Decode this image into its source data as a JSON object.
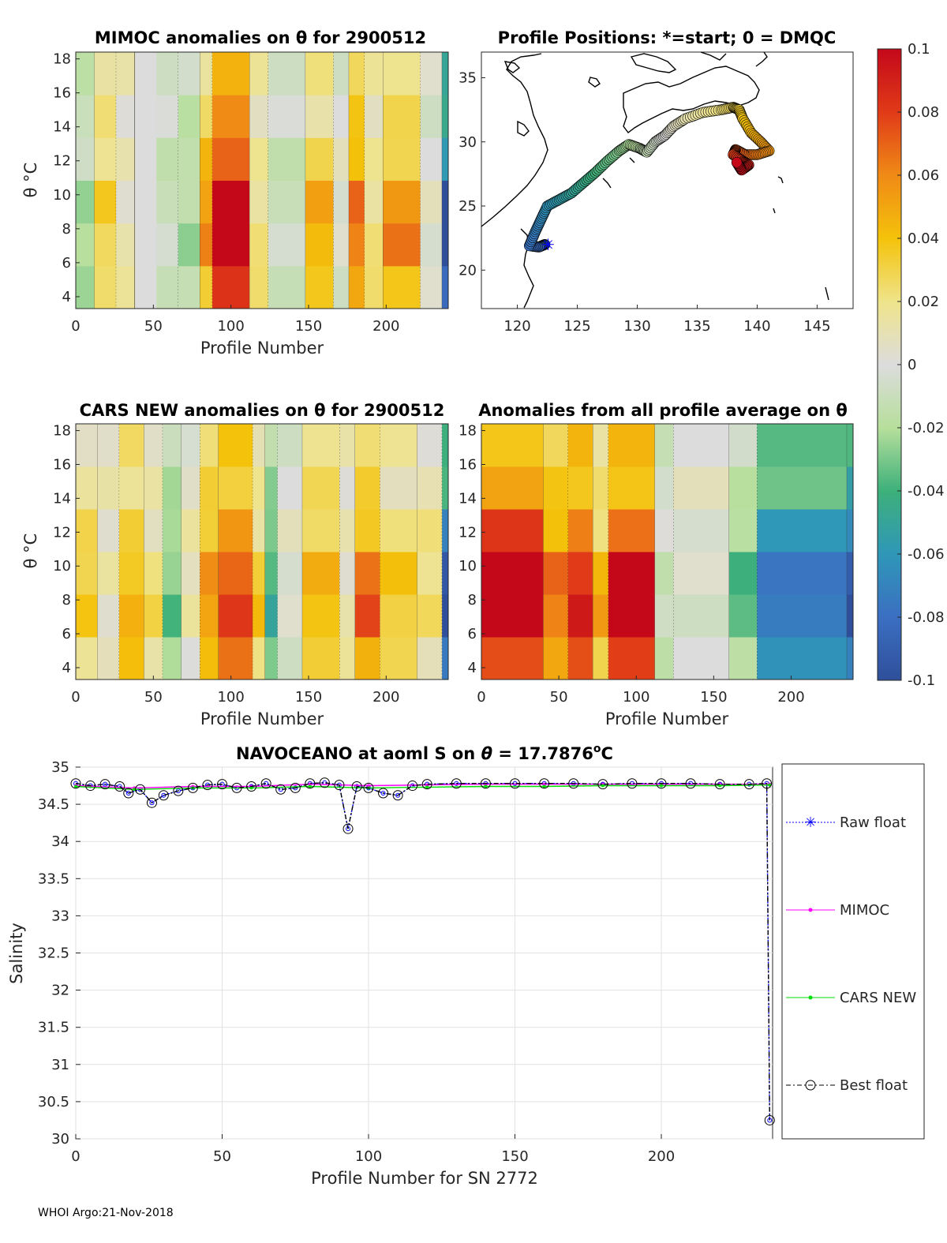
{
  "footer": "WHOI Argo:21-Nov-2018",
  "colors": {
    "raw": "#0000ff",
    "mimoc": "#ff00ff",
    "cars": "#00dd00",
    "best": "#000000"
  },
  "colorbar": {
    "ticks": [
      "0.1",
      "0.08",
      "0.06",
      "0.04",
      "0.02",
      "0",
      "-0.02",
      "-0.04",
      "-0.06",
      "-0.08",
      "-0.1"
    ],
    "range": [
      -0.1,
      0.1
    ]
  },
  "panels": {
    "mimoc": {
      "title": "MIMOC anomalies on θ  for 2900512",
      "xlabel": "Profile Number",
      "ylabel": "θ °C"
    },
    "positions": {
      "title": "Profile Positions: *=start; 0 = DMQC"
    },
    "cars": {
      "title": "CARS NEW anomalies on θ for 2900512",
      "xlabel": "Profile Number",
      "ylabel": "θ °C"
    },
    "avg": {
      "title": "Anomalies from all profile average on θ",
      "xlabel": "Profile Number"
    }
  },
  "chart_data": [
    {
      "type": "heatmap",
      "title": "MIMOC anomalies on θ  for 2900512",
      "xlabel": "Profile Number",
      "ylabel": "θ °C",
      "xlim": [
        0,
        240
      ],
      "ylim": [
        3.3,
        18.4
      ],
      "xticks": [
        "0",
        "50",
        "100",
        "150",
        "200"
      ],
      "yticks": [
        "4",
        "6",
        "8",
        "10",
        "12",
        "14",
        "16",
        "18"
      ],
      "columns": [
        {
          "x0": 0,
          "x1": 12,
          "anom": -0.02
        },
        {
          "x0": 12,
          "x1": 26,
          "anom": 0.03
        },
        {
          "x0": 26,
          "x1": 38,
          "anom": 0.01
        },
        {
          "x0": 52,
          "x1": 66,
          "anom": -0.01
        },
        {
          "x0": 66,
          "x1": 80,
          "anom": -0.02
        },
        {
          "x0": 80,
          "x1": 88,
          "anom": 0.05
        },
        {
          "x0": 88,
          "x1": 112,
          "anom": 0.1
        },
        {
          "x0": 112,
          "x1": 124,
          "anom": 0.02
        },
        {
          "x0": 124,
          "x1": 148,
          "anom": -0.01
        },
        {
          "x0": 148,
          "x1": 166,
          "anom": 0.04
        },
        {
          "x0": 166,
          "x1": 176,
          "anom": 0.0
        },
        {
          "x0": 176,
          "x1": 186,
          "anom": 0.06
        },
        {
          "x0": 186,
          "x1": 198,
          "anom": 0.02
        },
        {
          "x0": 198,
          "x1": 222,
          "anom": 0.05
        },
        {
          "x0": 222,
          "x1": 236,
          "anom": 0.0
        },
        {
          "x0": 236,
          "x1": 240,
          "anom": -0.09
        }
      ]
    },
    {
      "type": "scatter",
      "title": "Profile Positions: *=start; 0 = DMQC",
      "xlim": [
        117,
        148
      ],
      "ylim": [
        17,
        37
      ],
      "xticks": [
        "120",
        "125",
        "130",
        "135",
        "140",
        "145"
      ],
      "yticks": [
        "20",
        "25",
        "30",
        "35"
      ],
      "track_lon": [
        122.3,
        121.8,
        121.0,
        121.5,
        122.0,
        122.5,
        123.5,
        124.5,
        125.5,
        126.5,
        127.5,
        128.5,
        129.3,
        130.2,
        130.8,
        131.5,
        132.3,
        133.0,
        134.0,
        135.5,
        137.0,
        138.0,
        138.5,
        138.8,
        139.5,
        140.3,
        141.0,
        140.0,
        139.0,
        138.2,
        138.0,
        138.8,
        139.3,
        138.7,
        138.3
      ],
      "track_lat": [
        22.0,
        21.8,
        21.9,
        23.0,
        24.0,
        25.0,
        25.5,
        26.0,
        26.8,
        27.6,
        28.5,
        29.3,
        29.8,
        29.5,
        29.2,
        30.0,
        30.5,
        31.2,
        31.8,
        32.3,
        32.5,
        32.7,
        32.5,
        31.8,
        30.7,
        30.0,
        29.3,
        29.0,
        29.0,
        29.4,
        29.0,
        28.5,
        28.2,
        27.8,
        28.4
      ]
    },
    {
      "type": "heatmap",
      "title": "CARS NEW anomalies on θ for 2900512",
      "xlabel": "Profile Number",
      "ylabel": "θ °C",
      "xlim": [
        0,
        240
      ],
      "ylim": [
        3.3,
        18.4
      ],
      "xticks": [
        "0",
        "50",
        "100",
        "150",
        "200"
      ],
      "yticks": [
        "4",
        "6",
        "8",
        "10",
        "12",
        "14",
        "16",
        "18"
      ],
      "columns": [
        {
          "x0": 0,
          "x1": 14,
          "anom": 0.03
        },
        {
          "x0": 14,
          "x1": 28,
          "anom": 0.01
        },
        {
          "x0": 28,
          "x1": 44,
          "anom": 0.04
        },
        {
          "x0": 44,
          "x1": 56,
          "anom": 0.02
        },
        {
          "x0": 56,
          "x1": 68,
          "anom": -0.03
        },
        {
          "x0": 68,
          "x1": 80,
          "anom": 0.01
        },
        {
          "x0": 80,
          "x1": 92,
          "anom": 0.05
        },
        {
          "x0": 92,
          "x1": 114,
          "anom": 0.07
        },
        {
          "x0": 114,
          "x1": 122,
          "anom": 0.03
        },
        {
          "x0": 122,
          "x1": 130,
          "anom": -0.04
        },
        {
          "x0": 130,
          "x1": 146,
          "anom": 0.0
        },
        {
          "x0": 146,
          "x1": 170,
          "anom": 0.04
        },
        {
          "x0": 170,
          "x1": 180,
          "anom": 0.01
        },
        {
          "x0": 180,
          "x1": 196,
          "anom": 0.06
        },
        {
          "x0": 196,
          "x1": 220,
          "anom": 0.03
        },
        {
          "x0": 220,
          "x1": 236,
          "anom": 0.02
        },
        {
          "x0": 236,
          "x1": 240,
          "anom": -0.09
        }
      ]
    },
    {
      "type": "heatmap",
      "title": "Anomalies from all profile average on θ",
      "xlabel": "Profile Number",
      "xlim": [
        0,
        240
      ],
      "ylim": [
        3.3,
        18.4
      ],
      "xticks": [
        "0",
        "50",
        "100",
        "150",
        "200"
      ],
      "yticks": [
        "4",
        "6",
        "8",
        "10",
        "12",
        "14",
        "16",
        "18"
      ],
      "columns": [
        {
          "x0": 0,
          "x1": 40,
          "anom": 0.1
        },
        {
          "x0": 40,
          "x1": 56,
          "anom": 0.06
        },
        {
          "x0": 56,
          "x1": 72,
          "anom": 0.08
        },
        {
          "x0": 72,
          "x1": 82,
          "anom": 0.04
        },
        {
          "x0": 82,
          "x1": 112,
          "anom": 0.09
        },
        {
          "x0": 112,
          "x1": 124,
          "anom": -0.01
        },
        {
          "x0": 124,
          "x1": 160,
          "anom": 0.0
        },
        {
          "x0": 160,
          "x1": 178,
          "anom": -0.03
        },
        {
          "x0": 178,
          "x1": 236,
          "anom": -0.07
        },
        {
          "x0": 236,
          "x1": 240,
          "anom": -0.09
        }
      ]
    },
    {
      "type": "line",
      "title_prefix": "NAVOCEANO at aoml S on ",
      "title_theta": "θ",
      "title_suffix": " = 17.7876",
      "title_sup": "o",
      "title_unit": "C",
      "xlabel": "Profile Number for SN 2772",
      "ylabel": "Salinity",
      "xlim": [
        0,
        238
      ],
      "ylim": [
        30,
        35
      ],
      "xticks": [
        "0",
        "50",
        "100",
        "150",
        "200"
      ],
      "yticks": [
        "30",
        "30.5",
        "31",
        "31.5",
        "32",
        "32.5",
        "33",
        "33.5",
        "34",
        "34.5",
        "35"
      ],
      "legend": [
        "Raw float",
        "MIMOC",
        "CARS NEW",
        "Best float"
      ],
      "series": [
        {
          "name": "Raw float",
          "x": [
            0,
            5,
            10,
            15,
            18,
            22,
            26,
            30,
            35,
            40,
            45,
            50,
            55,
            60,
            65,
            70,
            75,
            80,
            85,
            90,
            93,
            96,
            100,
            105,
            110,
            115,
            120,
            130,
            140,
            150,
            160,
            170,
            180,
            190,
            200,
            210,
            220,
            230,
            236,
            237
          ],
          "y": [
            34.78,
            34.75,
            34.77,
            34.74,
            34.65,
            34.7,
            34.52,
            34.62,
            34.68,
            34.72,
            34.76,
            34.77,
            34.72,
            34.74,
            34.78,
            34.7,
            34.72,
            34.78,
            34.79,
            34.76,
            34.17,
            34.74,
            34.72,
            34.65,
            34.62,
            34.75,
            34.77,
            34.78,
            34.78,
            34.78,
            34.78,
            34.78,
            34.77,
            34.78,
            34.78,
            34.78,
            34.77,
            34.77,
            34.78,
            30.25
          ]
        },
        {
          "name": "MIMOC",
          "x": [
            0,
            20,
            40,
            60,
            80,
            100,
            120,
            140,
            160,
            180,
            200,
            220,
            237
          ],
          "y": [
            34.75,
            34.72,
            34.74,
            34.74,
            34.77,
            34.75,
            34.76,
            34.77,
            34.77,
            34.77,
            34.77,
            34.77,
            34.77
          ]
        },
        {
          "name": "CARS NEW",
          "x": [
            0,
            20,
            40,
            60,
            80,
            100,
            120,
            140,
            160,
            180,
            200,
            220,
            237
          ],
          "y": [
            34.74,
            34.7,
            34.72,
            34.72,
            34.74,
            34.72,
            34.73,
            34.74,
            34.74,
            34.75,
            34.75,
            34.75,
            34.76
          ]
        },
        {
          "name": "Best float",
          "x": [
            0,
            5,
            10,
            15,
            18,
            22,
            26,
            30,
            35,
            40,
            45,
            50,
            55,
            60,
            65,
            70,
            75,
            80,
            85,
            90,
            93,
            96,
            100,
            105,
            110,
            115,
            120,
            130,
            140,
            150,
            160,
            170,
            180,
            190,
            200,
            210,
            220,
            230,
            236,
            237
          ],
          "y": [
            34.78,
            34.75,
            34.77,
            34.74,
            34.65,
            34.7,
            34.52,
            34.62,
            34.68,
            34.72,
            34.76,
            34.77,
            34.72,
            34.74,
            34.78,
            34.7,
            34.72,
            34.78,
            34.79,
            34.76,
            34.17,
            34.74,
            34.72,
            34.65,
            34.62,
            34.75,
            34.77,
            34.78,
            34.78,
            34.78,
            34.78,
            34.78,
            34.77,
            34.78,
            34.78,
            34.78,
            34.77,
            34.77,
            34.78,
            30.25
          ]
        }
      ]
    }
  ]
}
